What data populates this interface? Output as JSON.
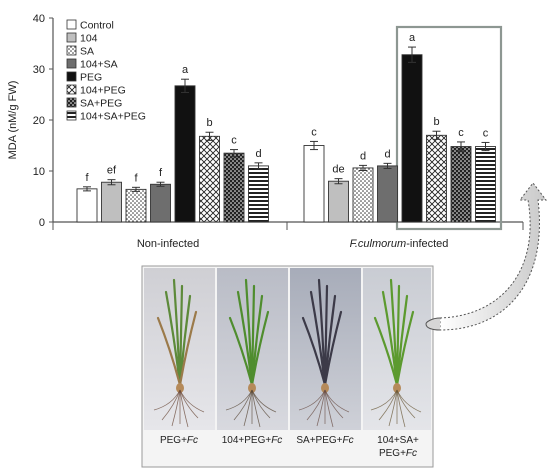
{
  "chart_data": {
    "type": "bar",
    "ylabel": "MDA (nM/g FW)",
    "ylim": [
      0,
      40
    ],
    "yticks": [
      0,
      10,
      20,
      30,
      40
    ],
    "grid": false,
    "legend_position": "top-left",
    "treatments": [
      "Control",
      "104",
      "SA",
      "104+SA",
      "PEG",
      "104+PEG",
      "SA+PEG",
      "104+SA+PEG"
    ],
    "groups": [
      {
        "label": "Non-infected",
        "italic_part": "",
        "values": [
          6.5,
          7.8,
          6.4,
          7.4,
          26.7,
          16.8,
          13.5,
          11.0
        ],
        "errors": [
          0.4,
          0.5,
          0.4,
          0.4,
          1.3,
          0.8,
          0.7,
          0.6
        ],
        "letters": [
          "f",
          "ef",
          "f",
          "f",
          "a",
          "b",
          "c",
          "d"
        ]
      },
      {
        "label": "-infected",
        "italic_part": "F.culmorum",
        "values": [
          15.0,
          8.0,
          10.6,
          11.0,
          32.8,
          17.0,
          14.8,
          14.8
        ],
        "errors": [
          0.8,
          0.5,
          0.5,
          0.5,
          1.5,
          0.8,
          0.9,
          0.8
        ],
        "letters": [
          "c",
          "de",
          "d",
          "d",
          "a",
          "b",
          "c",
          "c"
        ]
      }
    ]
  },
  "photo_panel": {
    "captions": [
      {
        "plain": "PEG+",
        "italic": "Fc",
        "line2": ""
      },
      {
        "plain": "104+PEG+",
        "italic": "Fc",
        "line2": ""
      },
      {
        "plain": "SA+PEG+",
        "italic": "Fc",
        "line2": ""
      },
      {
        "plain": "104+SA+",
        "italic": "",
        "line2_plain": "PEG+",
        "line2_italic": "Fc"
      }
    ]
  }
}
